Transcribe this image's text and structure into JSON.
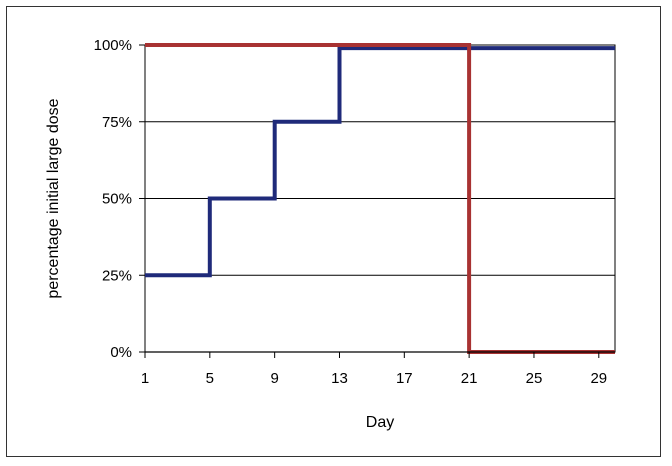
{
  "chart_data": {
    "type": "line",
    "xlabel": "Day",
    "ylabel": "percentage initial large dose",
    "xlim": [
      1,
      30
    ],
    "ylim": [
      0,
      100
    ],
    "x_ticks": [
      1,
      5,
      9,
      13,
      17,
      21,
      25,
      29
    ],
    "x_tick_labels": [
      "1",
      "5",
      "9",
      "13",
      "17",
      "21",
      "25",
      "29"
    ],
    "y_ticks": [
      0,
      25,
      50,
      75,
      100
    ],
    "y_tick_labels": [
      "0%",
      "25%",
      "50%",
      "75%",
      "100%"
    ],
    "grid": "horizontal",
    "series": [
      {
        "color": "#1f2a7a",
        "step": true,
        "points": [
          [
            1,
            25
          ],
          [
            5,
            25
          ],
          [
            5,
            50
          ],
          [
            9,
            50
          ],
          [
            9,
            75
          ],
          [
            13,
            75
          ],
          [
            13,
            99
          ],
          [
            30,
            99
          ]
        ]
      },
      {
        "color": "#a83232",
        "step": true,
        "points": [
          [
            1,
            100
          ],
          [
            21,
            100
          ],
          [
            21,
            0
          ],
          [
            30,
            0
          ]
        ]
      }
    ]
  }
}
